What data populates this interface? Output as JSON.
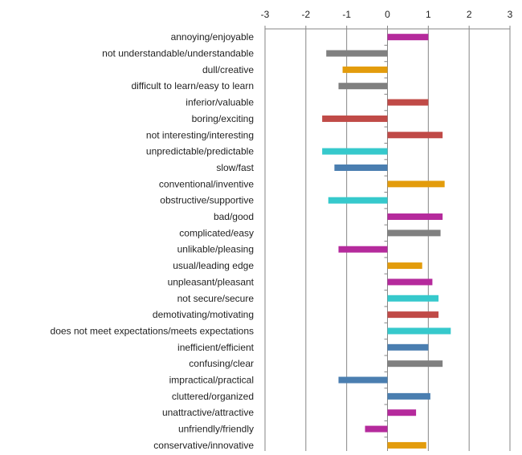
{
  "chart_data": {
    "type": "bar",
    "orientation": "horizontal",
    "xlim": [
      -3,
      3
    ],
    "x_ticks": [
      -3,
      -2,
      -1,
      0,
      1,
      2,
      3
    ],
    "x_tick_labels": [
      "-3",
      "-2",
      "-1",
      "0",
      "1",
      "2",
      "3"
    ],
    "x_axis_position": "top",
    "grid": "vertical",
    "legend": "none",
    "categories": [
      "annoying/enjoyable",
      "not understandable/understandable",
      "dull/creative",
      "difficult to learn/easy to learn",
      "inferior/valuable",
      "boring/exciting",
      "not interesting/interesting",
      "unpredictable/predictable",
      "slow/fast",
      "conventional/inventive",
      "obstructive/supportive",
      "bad/good",
      "complicated/easy",
      "unlikable/pleasing",
      "usual/leading edge",
      "unpleasant/pleasant",
      "not secure/secure",
      "demotivating/motivating",
      "does not meet expectations/meets expectations",
      "inefficient/efficient",
      "confusing/clear",
      "impractical/practical",
      "cluttered/organized",
      "unattractive/attractive",
      "unfriendly/friendly",
      "conservative/innovative"
    ],
    "values": [
      1.0,
      -1.5,
      -1.1,
      -1.2,
      1.0,
      -1.6,
      1.35,
      -1.6,
      -1.3,
      1.4,
      -1.45,
      1.35,
      1.3,
      -1.2,
      0.85,
      1.1,
      1.25,
      1.25,
      1.55,
      1.0,
      1.35,
      -1.2,
      1.05,
      0.7,
      -0.55,
      0.95
    ],
    "bar_colors": [
      "#b52a9c",
      "#808080",
      "#e39c0c",
      "#808080",
      "#c04a47",
      "#c04a47",
      "#c04a47",
      "#36c9cc",
      "#4a7eb0",
      "#e39c0c",
      "#36c9cc",
      "#b52a9c",
      "#808080",
      "#b52a9c",
      "#e39c0c",
      "#b52a9c",
      "#36c9cc",
      "#c04a47",
      "#36c9cc",
      "#4a7eb0",
      "#808080",
      "#4a7eb0",
      "#4a7eb0",
      "#b52a9c",
      "#b52a9c",
      "#e39c0c"
    ],
    "axis_color": "#868686",
    "grid_color": "#868686",
    "title": "",
    "xlabel": "",
    "ylabel": ""
  }
}
